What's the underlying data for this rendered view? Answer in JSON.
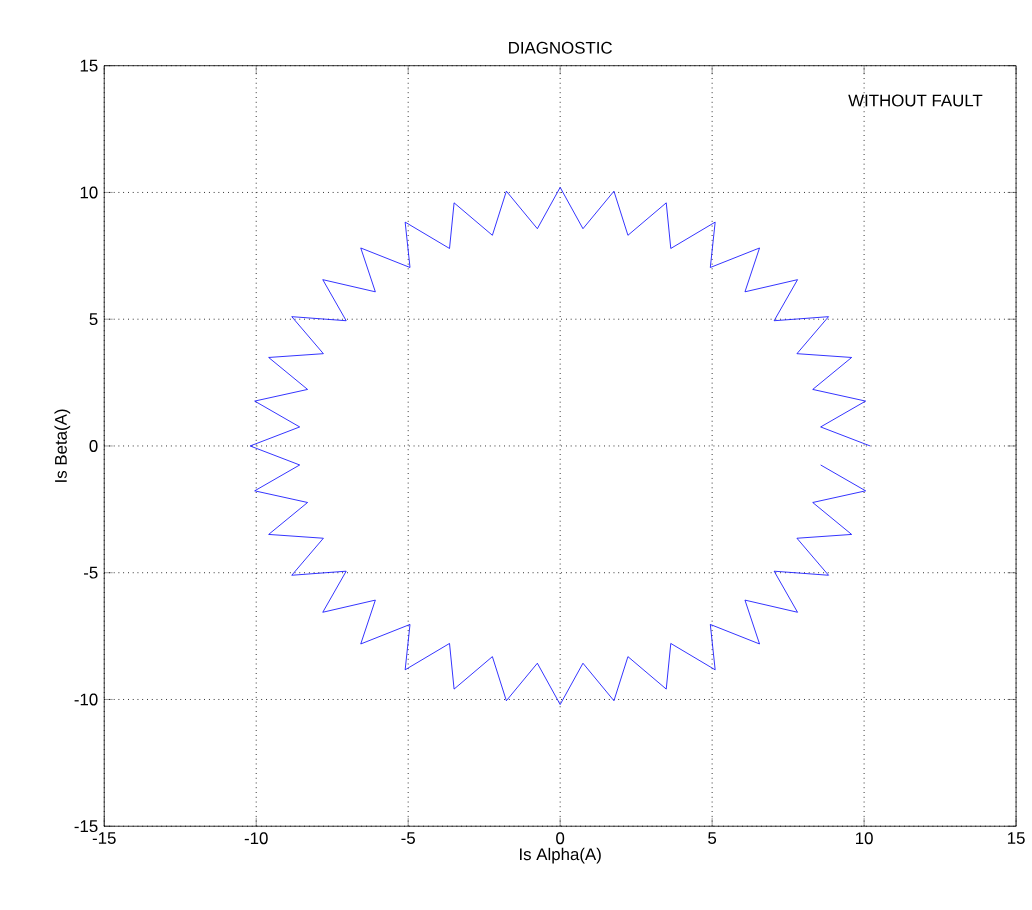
{
  "chart_data": {
    "type": "line",
    "title": "DIAGNOSTIC",
    "xlabel": "Is Alpha(A)",
    "ylabel": "Is Beta(A)",
    "annotations": [
      "WITHOUT FAULT"
    ],
    "series": [
      {
        "color": "#0000ff",
        "x": [
          10.2,
          8.57,
          10.05,
          8.31,
          9.59,
          7.79,
          8.83,
          7.04,
          7.81,
          6.08,
          6.56,
          4.94,
          5.1,
          3.64,
          3.49,
          2.23,
          1.77,
          0.75,
          0,
          -0.75,
          -1.77,
          -2.23,
          -3.49,
          -3.64,
          -5.1,
          -4.94,
          -6.56,
          -6.08,
          -7.81,
          -7.04,
          -8.83,
          -7.79,
          -9.59,
          -8.31,
          -10.05,
          -8.57,
          -10.2,
          -8.57,
          -10.05,
          -8.31,
          -9.59,
          -7.79,
          -8.83,
          -7.04,
          -7.81,
          -6.08,
          -6.56,
          -4.94,
          -5.1,
          -3.64,
          -3.49,
          -2.23,
          -1.77,
          -0.75,
          0,
          0.75,
          1.77,
          2.23,
          3.49,
          3.64,
          5.1,
          4.94,
          6.56,
          6.08,
          7.81,
          7.04,
          8.83,
          7.79,
          9.59,
          8.31,
          10.05,
          8.57
        ],
        "values": [
          0,
          0.75,
          1.77,
          2.23,
          3.49,
          3.64,
          5.1,
          4.94,
          6.56,
          6.08,
          7.81,
          7.04,
          8.83,
          7.79,
          9.59,
          8.31,
          10.05,
          8.57,
          10.2,
          8.57,
          10.05,
          8.31,
          9.59,
          7.79,
          8.83,
          7.04,
          7.81,
          6.08,
          6.56,
          4.94,
          5.1,
          3.64,
          3.49,
          2.23,
          1.77,
          0.75,
          0,
          -0.75,
          -1.77,
          -2.23,
          -3.49,
          -3.64,
          -5.1,
          -4.94,
          -6.56,
          -6.08,
          -7.81,
          -7.04,
          -8.83,
          -7.79,
          -9.59,
          -8.31,
          -10.05,
          -8.57,
          -10.2,
          -8.57,
          -10.05,
          -8.31,
          -9.59,
          -7.79,
          -8.83,
          -7.04,
          -7.81,
          -6.08,
          -6.56,
          -4.94,
          -5.1,
          -3.64,
          -3.49,
          -2.23,
          -1.77,
          -0.75
        ]
      }
    ],
    "xlim": [
      -15,
      15
    ],
    "ylim": [
      -15,
      15
    ],
    "xticks": [
      -15,
      -10,
      -5,
      0,
      5,
      10,
      15
    ],
    "yticks": [
      -15,
      -10,
      -5,
      0,
      5,
      10,
      15
    ],
    "grid": true,
    "marker": "none",
    "line_style": "solid"
  }
}
